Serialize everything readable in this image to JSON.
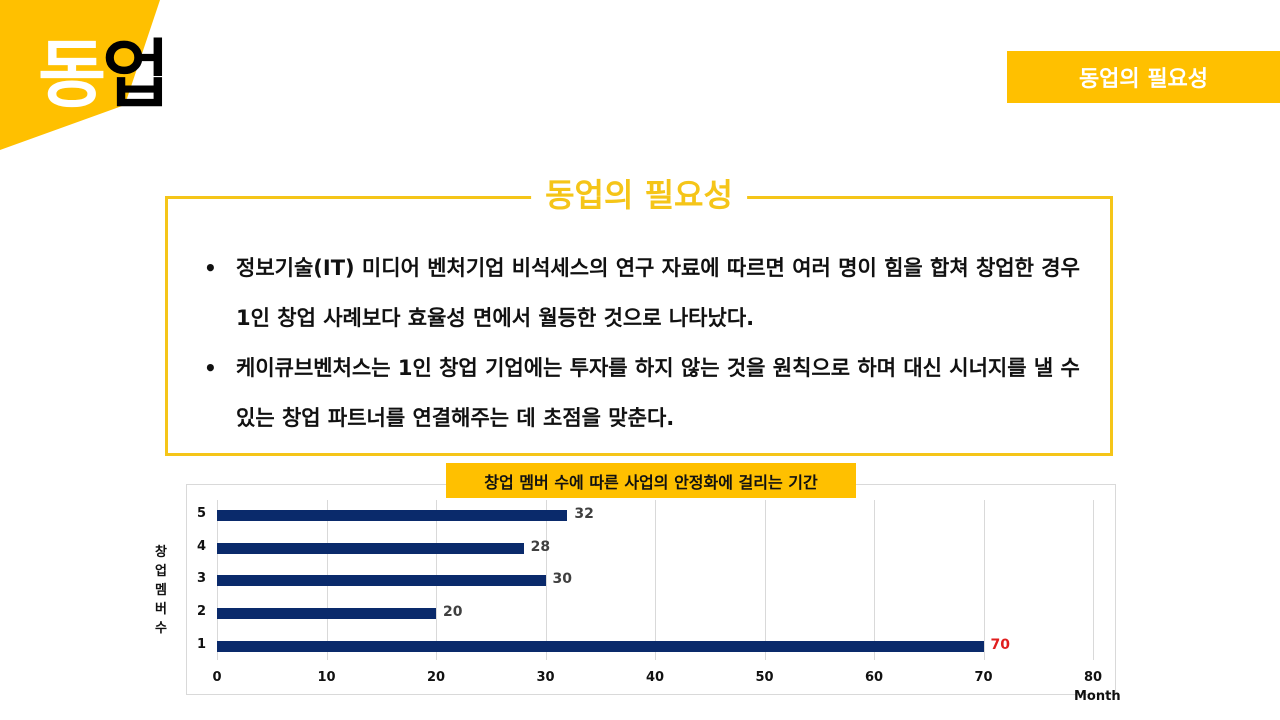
{
  "header": {
    "logo_part1": "동",
    "logo_part2": "업",
    "badge_label": "동업의 필요성"
  },
  "section": {
    "title": "동업의 필요성",
    "bullets": [
      "정보기술(IT) 미디어 벤처기업 비석세스의 연구 자료에 따르면 여러 명이 힘을 합쳐 창업한 경우 1인 창업 사례보다 효율성 면에서 월등한 것으로 나타났다.",
      "케이큐브벤처스는 1인 창업 기업에는 투자를 하지 않는 것을 원칙으로 하며 대신 시너지를 낼 수 있는 창업 파트너를 연결해주는 데 초점을 맞춘다."
    ]
  },
  "colors": {
    "accent": "#FFC000",
    "bar": "#0A2A6B",
    "highlight_label": "#E01E1E"
  },
  "chart_data": {
    "type": "bar",
    "orientation": "horizontal",
    "title": "창업 멤버 수에 따른 사업의 안정화에 걸리는 기간",
    "xlabel": "Month",
    "ylabel": "창업멤버수",
    "categories": [
      "1",
      "2",
      "3",
      "4",
      "5"
    ],
    "values": [
      70,
      20,
      30,
      28,
      32
    ],
    "value_labels": [
      "70",
      "20",
      "30",
      "28",
      "32"
    ],
    "highlight": "1",
    "xlim": [
      0,
      80
    ],
    "xticks": [
      "0",
      "10",
      "20",
      "30",
      "40",
      "50",
      "60",
      "70",
      "80"
    ],
    "grid": true,
    "legend": false
  }
}
